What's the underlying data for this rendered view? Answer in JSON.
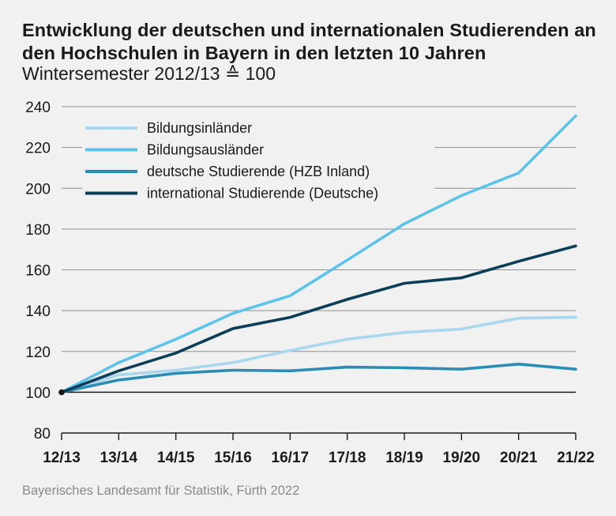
{
  "title": "Entwicklung der deutschen und internationalen Studierenden an den Hochschulen in Bayern in den letzten 10 Jahren",
  "subtitle": "Wintersemester 2012/13 ≙ 100",
  "source": "Bayerisches Landesamt für Statistik, Fürth 2022",
  "chart_data": {
    "type": "line",
    "title": "Entwicklung der deutschen und internationalen Studierenden an den Hochschulen in Bayern in den letzten 10 Jahren",
    "subtitle": "Wintersemester 2012/13 ≙ 100",
    "xlabel": "",
    "ylabel": "",
    "categories": [
      "12/13",
      "13/14",
      "14/15",
      "15/16",
      "16/17",
      "17/18",
      "18/19",
      "19/20",
      "20/21",
      "21/22"
    ],
    "ylim": [
      80,
      240
    ],
    "yticks": [
      80,
      100,
      120,
      140,
      160,
      180,
      200,
      220,
      240
    ],
    "grid": true,
    "legend_position": "top-left",
    "baseline": 100,
    "series": [
      {
        "name": "Bildungsinländer",
        "color": "#a9d8ee",
        "values": [
          100,
          108.5,
          110.8,
          114.5,
          120.5,
          126,
          129.3,
          131,
          136.3,
          136.8
        ]
      },
      {
        "name": "Bildungsausländer",
        "color": "#5cc4ea",
        "values": [
          100,
          114.5,
          126,
          138.7,
          147.3,
          164.8,
          182.6,
          196.4,
          207.5,
          235.5
        ]
      },
      {
        "name": "deutsche Studierende (HZB Inland)",
        "color": "#2b8cb4",
        "values": [
          100,
          106,
          109.3,
          110.8,
          110.5,
          112.3,
          112,
          111.3,
          113.8,
          111.3
        ]
      },
      {
        "name": "international Studierende (Deutsche)",
        "color": "#0c3f57",
        "values": [
          100,
          110.5,
          119.2,
          131.2,
          136.7,
          145.5,
          153.4,
          156.1,
          164.2,
          171.7
        ]
      }
    ]
  }
}
